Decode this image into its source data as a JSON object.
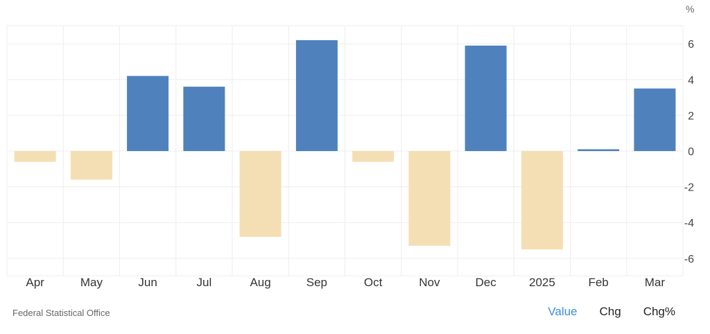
{
  "chart_data": {
    "type": "bar",
    "unit": "%",
    "categories": [
      "Apr",
      "May",
      "Jun",
      "Jul",
      "Aug",
      "Sep",
      "Oct",
      "Nov",
      "Dec",
      "2025",
      "Feb",
      "Mar"
    ],
    "values": [
      -0.6,
      -1.6,
      4.2,
      3.6,
      -4.8,
      6.2,
      -0.6,
      -5.3,
      5.9,
      -5.5,
      0.1,
      3.5
    ],
    "ylim": [
      -7,
      7
    ],
    "yticks": [
      6,
      4,
      2,
      0,
      -2,
      -4,
      -6
    ],
    "grid": true,
    "colors": {
      "positive": "#4f81bd",
      "negative": "#f4dfb5",
      "grid": "#eeeeee"
    }
  },
  "footer": {
    "source": "Federal Statistical Office",
    "toggles": {
      "value": "Value",
      "chg": "Chg",
      "chg_pct": "Chg%"
    },
    "active_color": "#3b8ddd"
  }
}
